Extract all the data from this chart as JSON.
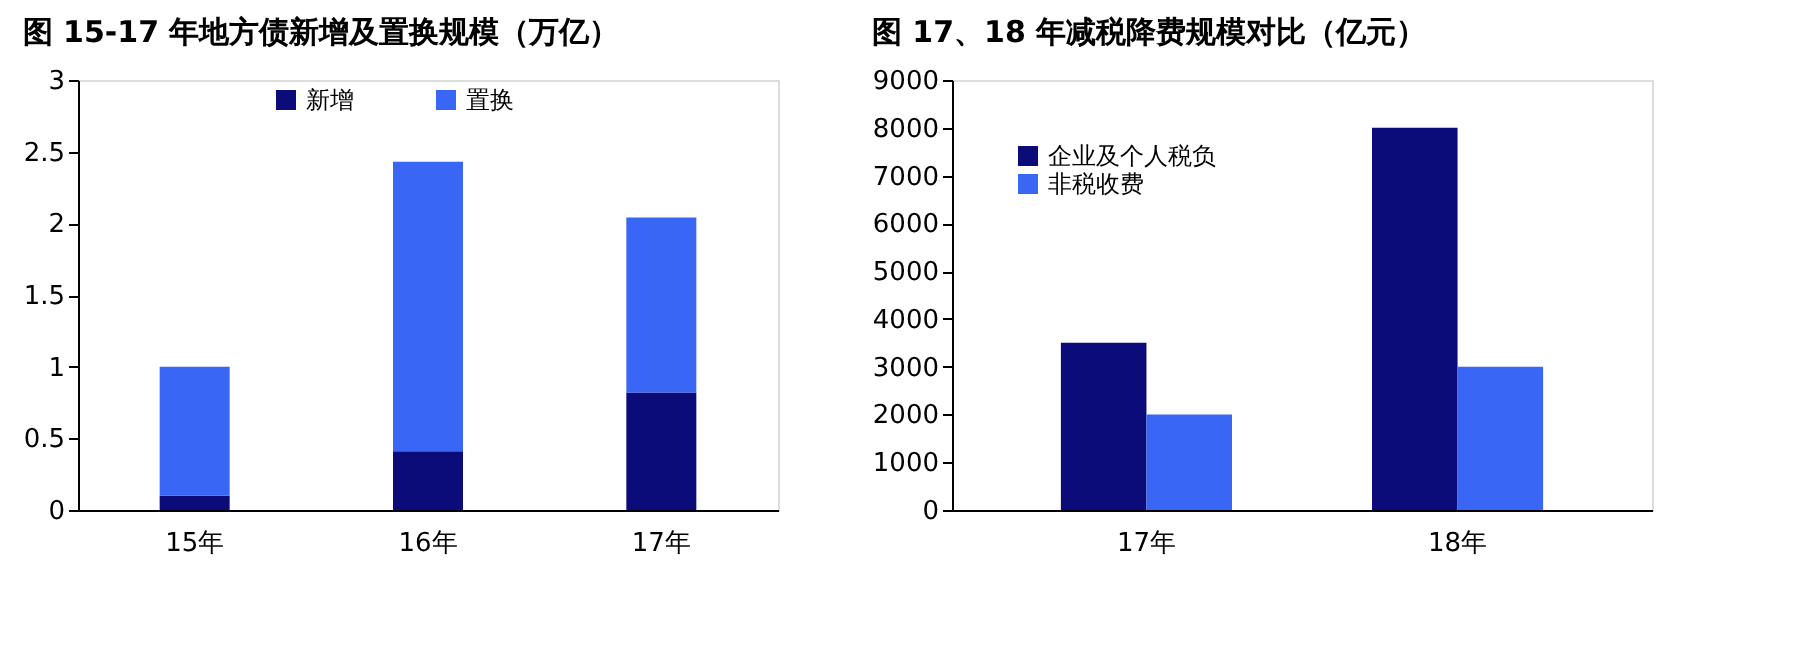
{
  "chart_data": [
    {
      "type": "bar",
      "title": "图 15-17 年地方债新增及置换规模（万亿）",
      "categories": [
        "15年",
        "16年",
        "17年"
      ],
      "stacked": true,
      "series": [
        {
          "name": "新增",
          "color": "#0b0b7a",
          "values": [
            0.1,
            0.41,
            0.82
          ]
        },
        {
          "name": "置换",
          "color": "#3a66f5",
          "values": [
            0.9,
            2.02,
            1.22
          ]
        }
      ],
      "ylim": [
        0,
        3
      ],
      "yticks": [
        0,
        0.5,
        1,
        1.5,
        2,
        2.5,
        3
      ],
      "grid": false,
      "legend": "top"
    },
    {
      "type": "bar",
      "title": "图 17、18 年减税降费规模对比（亿元）",
      "categories": [
        "17年",
        "18年"
      ],
      "series": [
        {
          "name": "企业及个人税负",
          "color": "#0b0b7a",
          "values": [
            3500,
            8000
          ]
        },
        {
          "name": "非税收费",
          "color": "#3a66f5",
          "values": [
            2000,
            3000
          ]
        }
      ],
      "ylim": [
        0,
        9000
      ],
      "yticks": [
        0,
        1000,
        2000,
        3000,
        4000,
        5000,
        6000,
        7000,
        8000,
        9000
      ],
      "grid": false,
      "legend": "top left"
    }
  ]
}
